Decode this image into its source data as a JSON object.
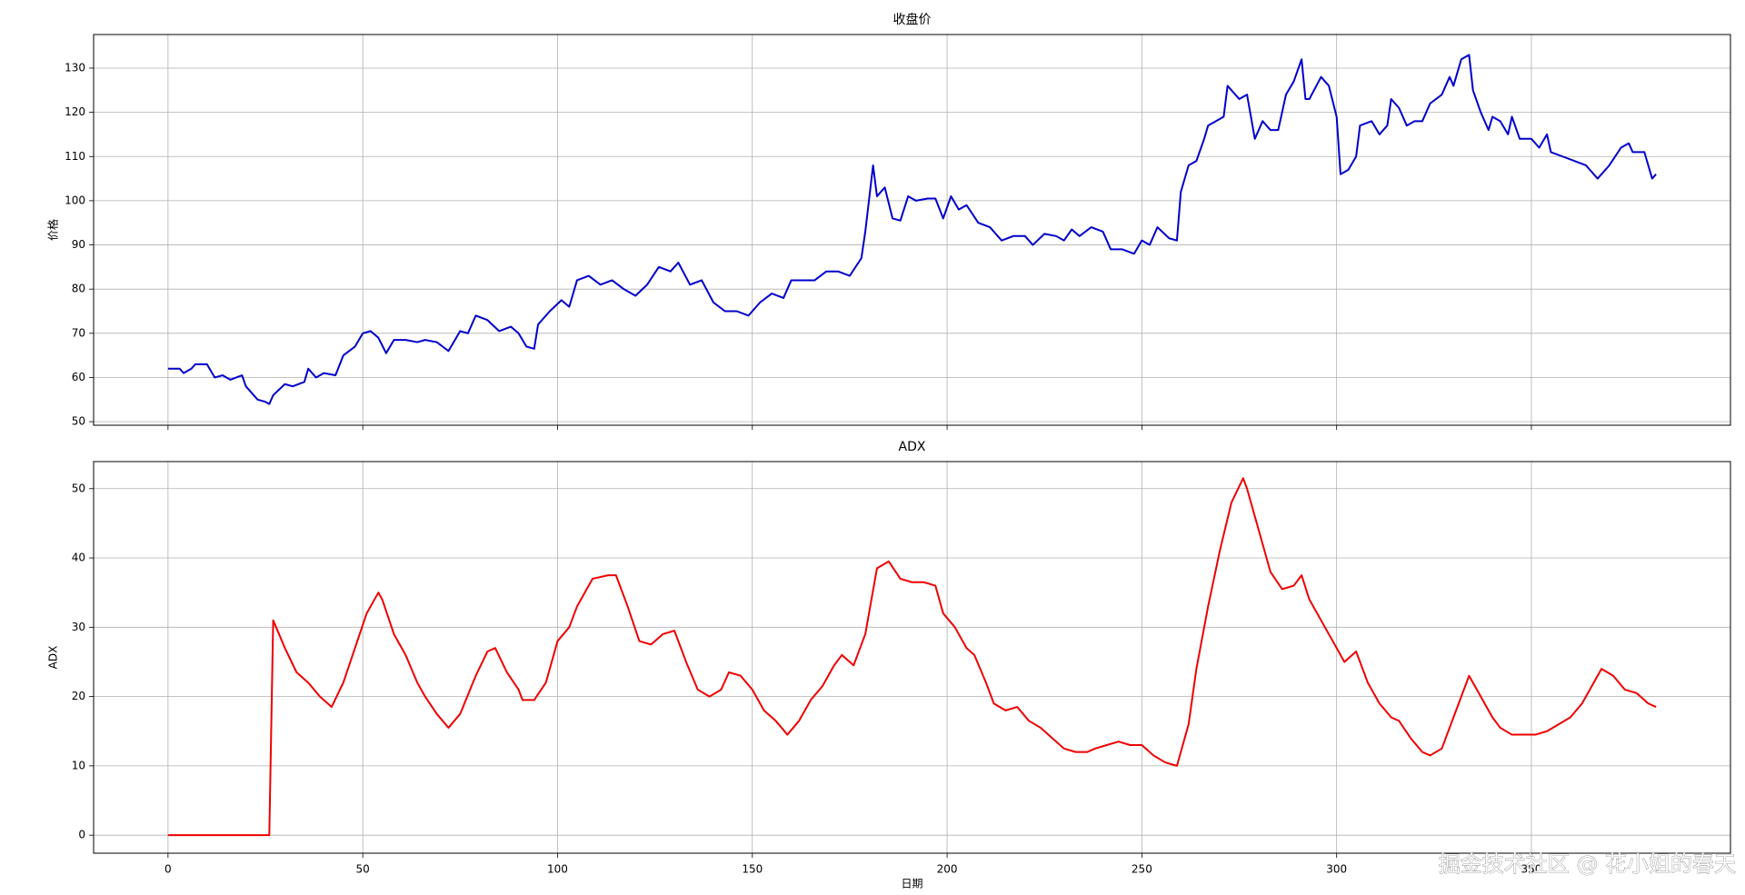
{
  "chart_data": [
    {
      "type": "line",
      "title": "收盘价",
      "ylabel": "价格",
      "grid": true,
      "show_xtick_labels": false,
      "xlim": [
        -19.1,
        401.1
      ],
      "xticks": [
        0,
        50,
        100,
        150,
        200,
        250,
        300,
        350
      ],
      "ylim": [
        49.2,
        137.6
      ],
      "yticks": [
        50,
        60,
        70,
        80,
        90,
        100,
        110,
        120,
        130
      ],
      "series": [
        {
          "color": "#0000cc",
          "x": [
            0,
            3,
            4,
            6,
            7,
            10,
            12,
            14,
            16,
            19,
            20,
            23,
            25,
            26,
            27,
            30,
            32,
            35,
            36,
            38,
            40,
            43,
            45,
            48,
            50,
            52,
            54,
            56,
            58,
            61,
            64,
            66,
            69,
            72,
            75,
            77,
            79,
            82,
            85,
            88,
            90,
            92,
            94,
            95,
            98,
            101,
            103,
            105,
            108,
            111,
            114,
            117,
            120,
            123,
            126,
            129,
            131,
            134,
            137,
            140,
            143,
            146,
            149,
            152,
            155,
            158,
            160,
            163,
            166,
            169,
            172,
            175,
            178,
            179,
            181,
            182,
            184,
            186,
            188,
            190,
            192,
            195,
            197,
            199,
            201,
            203,
            205,
            208,
            211,
            214,
            217,
            220,
            222,
            225,
            228,
            230,
            232,
            234,
            237,
            240,
            242,
            245,
            248,
            250,
            252,
            254,
            257,
            259,
            260,
            262,
            264,
            266,
            267,
            269,
            271,
            272,
            275,
            277,
            278,
            279,
            281,
            283,
            285,
            287,
            289,
            291,
            292,
            293,
            296,
            298,
            300,
            301,
            303,
            305,
            306,
            309,
            311,
            313,
            314,
            316,
            318,
            320,
            322,
            324,
            327,
            329,
            330,
            332,
            334,
            335,
            337,
            339,
            340,
            342,
            344,
            345,
            347,
            350,
            352,
            354,
            355,
            358,
            361,
            364,
            367,
            368,
            370,
            373,
            375,
            376,
            379,
            381,
            382
          ],
          "values": [
            62,
            62,
            61,
            62,
            63,
            63,
            60,
            60.5,
            59.5,
            60.5,
            58,
            55,
            54.5,
            54,
            56,
            58.5,
            58,
            59,
            62,
            60,
            61,
            60.5,
            65,
            67,
            70,
            70.5,
            69,
            65.5,
            68.5,
            68.5,
            68,
            68.5,
            68,
            66,
            70.5,
            70,
            74,
            73,
            70.5,
            71.5,
            70,
            67,
            66.5,
            72,
            75,
            77.5,
            76,
            82,
            83,
            81,
            82,
            80,
            78.5,
            81,
            85,
            84,
            86,
            81,
            82,
            77,
            75,
            75,
            74,
            77,
            79,
            78,
            82,
            82,
            82,
            84,
            84,
            83,
            87,
            93,
            108,
            101,
            103,
            96,
            95.5,
            101,
            100,
            100.5,
            100.5,
            96,
            101,
            98,
            99,
            95,
            94,
            91,
            92,
            92,
            90,
            92.5,
            92,
            91,
            93.5,
            92,
            94,
            93,
            89,
            89,
            88,
            91,
            90,
            94,
            91.5,
            91,
            102,
            108,
            109,
            114,
            117,
            118,
            119,
            126,
            123,
            124,
            119,
            114,
            118,
            116,
            116,
            124,
            127,
            132,
            123,
            123,
            128,
            126,
            119,
            106,
            107,
            110,
            117,
            118,
            115,
            117,
            123,
            121,
            117,
            118,
            118,
            122,
            124,
            128,
            126,
            132,
            133,
            125,
            120,
            116,
            119,
            118,
            115,
            119,
            114,
            114,
            112,
            115,
            111,
            110,
            109,
            108,
            105,
            106,
            108,
            112,
            113,
            111,
            111,
            105,
            106
          ]
        }
      ]
    },
    {
      "type": "line",
      "title": "ADX",
      "ylabel": "ADX",
      "xlabel": "日期",
      "grid": true,
      "show_xtick_labels": true,
      "xlim": [
        -19.1,
        401.1
      ],
      "xticks": [
        0,
        50,
        100,
        150,
        200,
        250,
        300,
        350
      ],
      "ylim": [
        -2.6,
        53.9
      ],
      "yticks": [
        0,
        10,
        20,
        30,
        40,
        50
      ],
      "series": [
        {
          "color": "#ee0000",
          "x": [
            0,
            26,
            27,
            30,
            33,
            36,
            39,
            42,
            45,
            48,
            51,
            54,
            55,
            58,
            61,
            64,
            66,
            69,
            72,
            75,
            79,
            82,
            84,
            87,
            90,
            91,
            94,
            97,
            100,
            103,
            105,
            109,
            113,
            115,
            118,
            121,
            124,
            127,
            130,
            133,
            136,
            139,
            142,
            144,
            147,
            150,
            153,
            156,
            159,
            162,
            165,
            168,
            171,
            173,
            176,
            179,
            182,
            185,
            188,
            191,
            194,
            197,
            199,
            202,
            205,
            207,
            210,
            212,
            215,
            218,
            221,
            224,
            227,
            230,
            233,
            236,
            238,
            241,
            244,
            247,
            250,
            253,
            256,
            259,
            262,
            264,
            267,
            270,
            273,
            276,
            277,
            280,
            283,
            286,
            289,
            291,
            293,
            296,
            299,
            302,
            305,
            308,
            311,
            314,
            316,
            319,
            322,
            324,
            327,
            330,
            334,
            337,
            340,
            342,
            345,
            348,
            351,
            354,
            357,
            360,
            363,
            366,
            368,
            371,
            374,
            377,
            380,
            382
          ],
          "values": [
            0,
            0,
            31,
            27,
            23.5,
            22,
            20,
            18.5,
            22,
            27,
            32,
            35,
            34,
            29,
            26,
            22,
            20,
            17.5,
            15.5,
            17.5,
            23,
            26.5,
            27,
            23.5,
            21,
            19.5,
            19.5,
            22,
            28,
            30,
            33,
            37,
            37.5,
            37.5,
            33,
            28,
            27.5,
            29,
            29.5,
            25,
            21,
            20,
            21,
            23.5,
            23,
            21,
            18,
            16.5,
            14.5,
            16.5,
            19.5,
            21.5,
            24.5,
            26,
            24.5,
            29,
            38.5,
            39.5,
            37,
            36.5,
            36.5,
            36,
            32,
            30,
            27,
            26,
            22,
            19,
            18,
            18.5,
            16.5,
            15.5,
            14,
            12.5,
            12,
            12,
            12.5,
            13,
            13.5,
            13,
            13,
            11.5,
            10.5,
            10,
            16,
            24,
            33,
            41,
            48,
            51.5,
            50,
            44,
            38,
            35.5,
            36,
            37.5,
            34,
            31,
            28,
            25,
            26.5,
            22,
            19,
            17,
            16.5,
            14,
            12,
            11.5,
            12.5,
            17,
            23,
            20,
            17,
            15.5,
            14.5,
            14.5,
            14.5,
            15,
            16,
            17,
            19,
            22,
            24,
            23,
            21,
            20.5,
            19,
            18.5
          ]
        }
      ]
    }
  ],
  "watermark": "掘金技术社区 @ 花小姐的春天"
}
